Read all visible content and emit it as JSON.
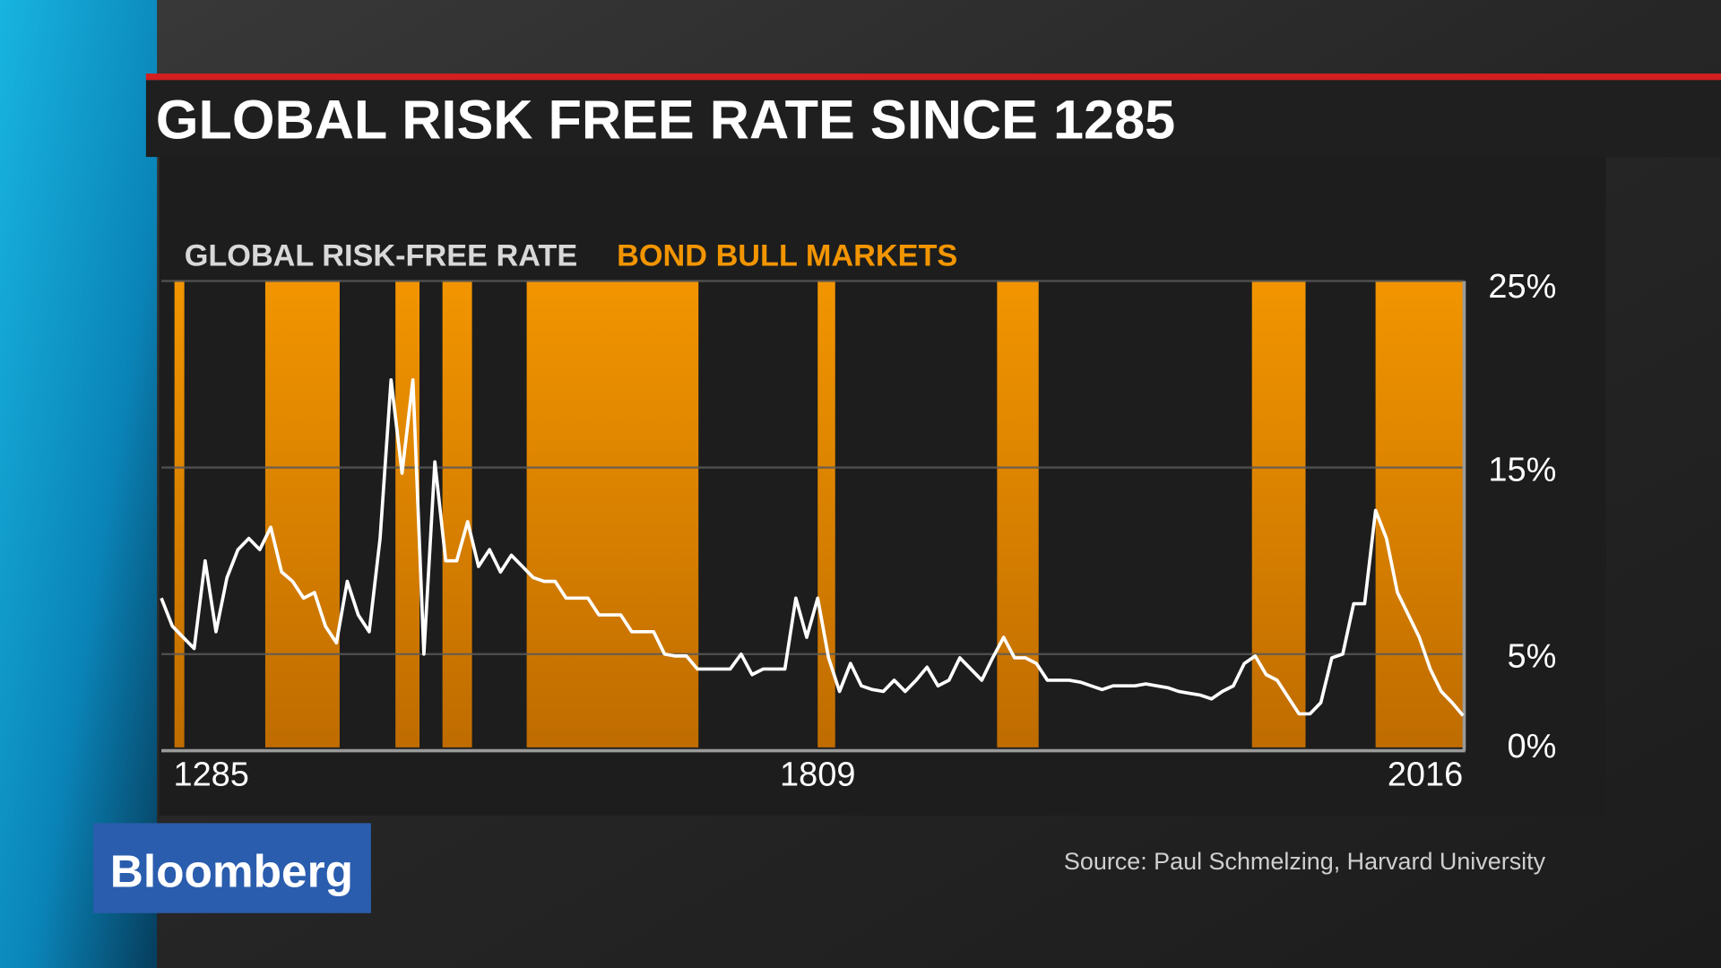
{
  "chart_data": {
    "type": "line",
    "title": "GLOBAL RISK FREE RATE SINCE 1285",
    "source": "Source: Paul Schmelzing, Harvard University",
    "categories": [
      "1285",
      null,
      null,
      null,
      null,
      null,
      null,
      null,
      null,
      null,
      null,
      null,
      null,
      null,
      null,
      null,
      null,
      null,
      null,
      null,
      null,
      null,
      null,
      null,
      null,
      null,
      null,
      null,
      null,
      null,
      null,
      null,
      null,
      null,
      null,
      null,
      null,
      null,
      null,
      null,
      null,
      null,
      null,
      null,
      null,
      null,
      null,
      null,
      null,
      null,
      null,
      null,
      null,
      null,
      null,
      null,
      null,
      null,
      null,
      null,
      "1809",
      null,
      null,
      null,
      null,
      null,
      null,
      null,
      null,
      null,
      null,
      null,
      null,
      null,
      null,
      null,
      null,
      null,
      null,
      null,
      null,
      null,
      null,
      null,
      null,
      null,
      null,
      null,
      null,
      null,
      null,
      null,
      null,
      null,
      null,
      null,
      null,
      null,
      null,
      null,
      null,
      null,
      null,
      null,
      null,
      null,
      null,
      null,
      null,
      null,
      null,
      null,
      null,
      null,
      null,
      null,
      null,
      null,
      null,
      "2016"
    ],
    "series": [
      {
        "name": "GLOBAL RISK-FREE RATE",
        "color": "#ffffff",
        "values": [
          8.0,
          6.5,
          5.9,
          5.3,
          10.0,
          6.2,
          9.1,
          10.6,
          11.2,
          10.6,
          11.8,
          9.4,
          8.9,
          8.0,
          8.3,
          6.5,
          5.6,
          8.9,
          7.1,
          6.2,
          11.2,
          19.7,
          14.7,
          19.7,
          5.0,
          15.3,
          10.0,
          10.0,
          12.1,
          9.7,
          10.6,
          9.4,
          10.3,
          9.7,
          9.1,
          8.9,
          8.9,
          8.0,
          8.0,
          8.0,
          7.1,
          7.1,
          7.1,
          6.2,
          6.2,
          6.2,
          5.0,
          4.9,
          4.9,
          4.2,
          4.2,
          4.2,
          4.2,
          5.0,
          3.9,
          4.2,
          4.2,
          4.2,
          8.0,
          5.9,
          8.0,
          4.8,
          3.0,
          4.5,
          3.3,
          3.1,
          3.0,
          3.6,
          3.0,
          3.6,
          4.3,
          3.3,
          3.6,
          4.8,
          4.2,
          3.6,
          4.8,
          5.9,
          4.8,
          4.8,
          4.5,
          3.6,
          3.6,
          3.6,
          3.5,
          3.3,
          3.1,
          3.3,
          3.3,
          3.3,
          3.4,
          3.3,
          3.2,
          3.0,
          2.9,
          2.8,
          2.6,
          3.0,
          3.3,
          4.5,
          4.9,
          3.9,
          3.6,
          2.7,
          1.8,
          1.8,
          2.4,
          4.8,
          5.0,
          7.7,
          7.7,
          12.7,
          11.2,
          8.3,
          7.1,
          5.9,
          4.2,
          3.0,
          2.4,
          1.7
        ]
      }
    ],
    "bands": {
      "name": "BOND BULL MARKETS",
      "color": "#f29500",
      "ranges": [
        [
          1.2,
          2.1
        ],
        [
          9.5,
          16.3
        ],
        [
          21.4,
          23.6
        ],
        [
          25.7,
          28.4
        ],
        [
          33.4,
          49.1
        ],
        [
          60.0,
          61.6
        ],
        [
          76.4,
          80.2
        ],
        [
          99.7,
          104.6
        ],
        [
          111.0,
          119.0
        ]
      ]
    },
    "ylim": [
      0,
      25
    ],
    "yticks": [
      {
        "value": 0,
        "label": "0%"
      },
      {
        "value": 5,
        "label": "5%"
      },
      {
        "value": 15,
        "label": "15%"
      },
      {
        "value": 25,
        "label": "25%"
      }
    ],
    "grid": true
  },
  "logo": "Bloomberg"
}
